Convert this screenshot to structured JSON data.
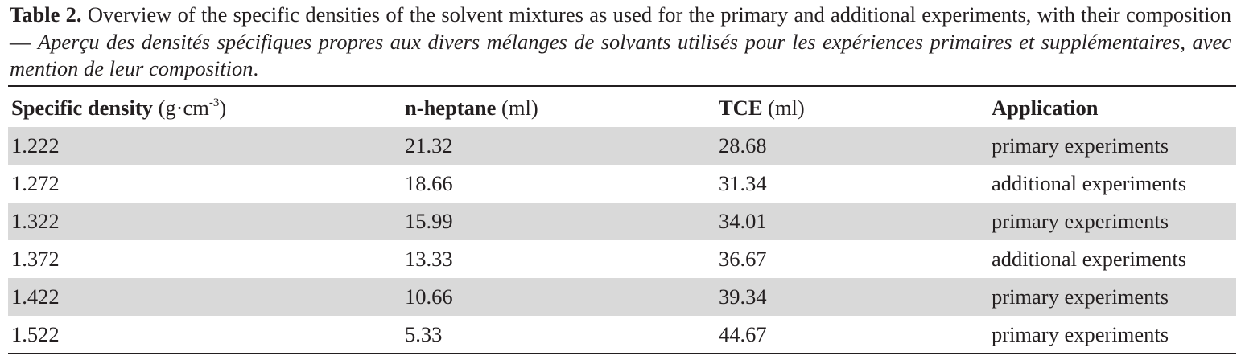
{
  "caption": {
    "label": "Table 2.",
    "english": "Overview of the specific densities of the solvent mixtures as used for the primary and additional experiments, with their composition —",
    "french": "Aperçu des densités spécifiques propres aux divers mélanges de solvants utilisés pour les expériences primaires et supplémentaires, avec mention de leur composition",
    "end": "."
  },
  "table": {
    "columns": [
      {
        "name": "Specific density",
        "unit": "(g·cm",
        "unit_sup": "-3",
        "unit_end": ")"
      },
      {
        "name": "n-heptane",
        "unit": "(ml)"
      },
      {
        "name": "TCE",
        "unit": "(ml)"
      },
      {
        "name": "Application"
      }
    ],
    "rows": [
      [
        "1.222",
        "21.32",
        "28.68",
        "primary experiments"
      ],
      [
        "1.272",
        "18.66",
        "31.34",
        "additional experiments"
      ],
      [
        "1.322",
        "15.99",
        "34.01",
        "primary experiments"
      ],
      [
        "1.372",
        "13.33",
        "36.67",
        "additional experiments"
      ],
      [
        "1.422",
        "10.66",
        "39.34",
        "primary experiments"
      ],
      [
        "1.522",
        "5.33",
        "44.67",
        "primary experiments"
      ]
    ]
  }
}
